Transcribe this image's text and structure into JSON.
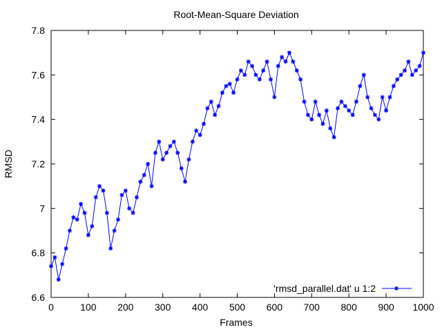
{
  "chart_data": {
    "type": "line",
    "title": "Root-Mean-Square Deviation",
    "xlabel": "Frames",
    "ylabel": "RMSD",
    "xlim": [
      0,
      1000
    ],
    "ylim": [
      6.6,
      7.8
    ],
    "x_ticks": [
      0,
      100,
      200,
      300,
      400,
      500,
      600,
      700,
      800,
      900,
      1000
    ],
    "y_ticks": [
      6.6,
      6.8,
      7.0,
      7.2,
      7.4,
      7.6,
      7.8
    ],
    "x_tick_labels": [
      "0",
      "100",
      "200",
      "300",
      "400",
      "500",
      "600",
      "700",
      "800",
      "900",
      "1000"
    ],
    "y_tick_labels": [
      "6.6",
      "6.8",
      "7",
      "7.2",
      "7.4",
      "7.6",
      "7.8"
    ],
    "grid": false,
    "legend_position": "bottom-right",
    "series": [
      {
        "name": "'rmsd_parallel.dat' u 1:2",
        "color": "#0000ff",
        "marker": "asterisk",
        "x": [
          0,
          10,
          20,
          30,
          40,
          50,
          60,
          70,
          80,
          90,
          100,
          110,
          120,
          130,
          140,
          150,
          160,
          170,
          180,
          190,
          200,
          210,
          220,
          230,
          240,
          250,
          260,
          270,
          280,
          290,
          300,
          310,
          320,
          330,
          340,
          350,
          360,
          370,
          380,
          390,
          400,
          410,
          420,
          430,
          440,
          450,
          460,
          470,
          480,
          490,
          500,
          510,
          520,
          530,
          540,
          550,
          560,
          570,
          580,
          590,
          600,
          610,
          620,
          630,
          640,
          650,
          660,
          670,
          680,
          690,
          700,
          710,
          720,
          730,
          740,
          750,
          760,
          770,
          780,
          790,
          800,
          810,
          820,
          830,
          840,
          850,
          860,
          870,
          880,
          890,
          900,
          910,
          920,
          930,
          940,
          950,
          960,
          970,
          980,
          990,
          1000
        ],
        "y": [
          6.74,
          6.78,
          6.68,
          6.75,
          6.82,
          6.9,
          6.96,
          6.95,
          7.02,
          6.98,
          6.88,
          6.92,
          7.05,
          7.1,
          7.08,
          6.98,
          6.82,
          6.9,
          6.95,
          7.06,
          7.08,
          7.0,
          6.98,
          7.05,
          7.12,
          7.15,
          7.2,
          7.1,
          7.25,
          7.3,
          7.22,
          7.25,
          7.28,
          7.3,
          7.25,
          7.18,
          7.12,
          7.22,
          7.3,
          7.35,
          7.33,
          7.38,
          7.45,
          7.48,
          7.42,
          7.46,
          7.52,
          7.55,
          7.56,
          7.52,
          7.58,
          7.62,
          7.6,
          7.66,
          7.64,
          7.6,
          7.58,
          7.62,
          7.66,
          7.58,
          7.5,
          7.64,
          7.68,
          7.66,
          7.7,
          7.66,
          7.62,
          7.58,
          7.48,
          7.42,
          7.4,
          7.48,
          7.42,
          7.38,
          7.44,
          7.36,
          7.32,
          7.45,
          7.48,
          7.46,
          7.44,
          7.42,
          7.48,
          7.55,
          7.6,
          7.5,
          7.45,
          7.42,
          7.4,
          7.5,
          7.44,
          7.5,
          7.55,
          7.58,
          7.6,
          7.62,
          7.66,
          7.6,
          7.62,
          7.64,
          7.7
        ]
      }
    ]
  }
}
